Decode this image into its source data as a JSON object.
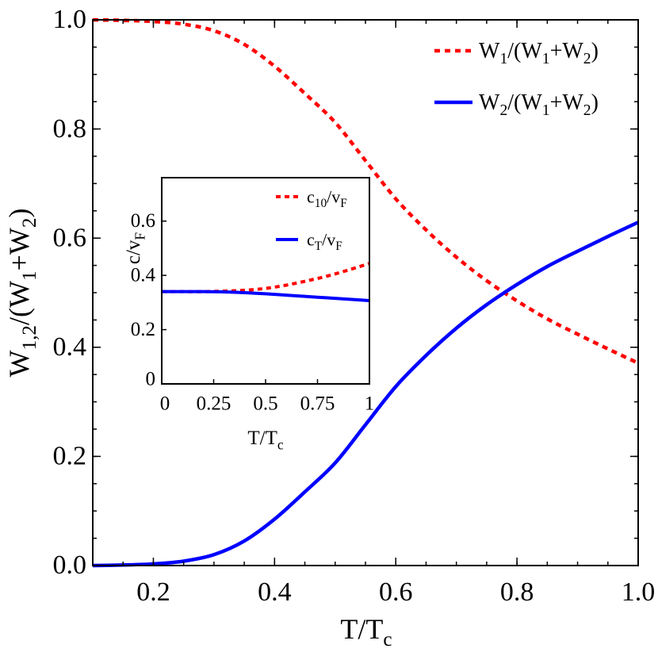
{
  "chart_data": [
    {
      "type": "line",
      "xlabel": [
        {
          "t": "T/T"
        },
        {
          "sub": "c"
        }
      ],
      "ylabel": [
        {
          "t": "W"
        },
        {
          "sub": "1,2"
        },
        {
          "t": "/(W"
        },
        {
          "sub": "1"
        },
        {
          "t": "+W"
        },
        {
          "sub": "2"
        },
        {
          "t": ")"
        }
      ],
      "xlim": [
        0.1,
        1.0
      ],
      "ylim": [
        0.0,
        1.0
      ],
      "xticks": [
        "0.2",
        "0.4",
        "0.6",
        "0.8",
        "1.0"
      ],
      "xtick_values": [
        0.2,
        0.4,
        0.6,
        0.8,
        1.0
      ],
      "yticks": [
        "0.0",
        "0.2",
        "0.4",
        "0.6",
        "0.8",
        "1.0"
      ],
      "ytick_values": [
        0,
        0.2,
        0.4,
        0.6,
        0.8,
        1.0
      ],
      "grid": false,
      "legend_position": "top-right",
      "x": [
        0.1,
        0.15,
        0.2,
        0.25,
        0.3,
        0.35,
        0.4,
        0.45,
        0.5,
        0.55,
        0.6,
        0.65,
        0.7,
        0.75,
        0.8,
        0.85,
        0.9,
        0.95,
        1.0
      ],
      "series": [
        {
          "name": [
            {
              "t": "W"
            },
            {
              "sub": "1"
            },
            {
              "t": "/(W"
            },
            {
              "sub": "1"
            },
            {
              "t": "+W"
            },
            {
              "sub": "2"
            },
            {
              "t": ")"
            }
          ],
          "style": "dotted",
          "color": "#ff0000",
          "values": [
            1.0,
            0.999,
            0.997,
            0.992,
            0.98,
            0.955,
            0.915,
            0.865,
            0.812,
            0.742,
            0.672,
            0.615,
            0.565,
            0.522,
            0.485,
            0.452,
            0.424,
            0.397,
            0.371
          ]
        },
        {
          "name": [
            {
              "t": "W"
            },
            {
              "sub": "2"
            },
            {
              "t": "/(W"
            },
            {
              "sub": "1"
            },
            {
              "t": "+W"
            },
            {
              "sub": "2"
            },
            {
              "t": ")"
            }
          ],
          "style": "solid",
          "color": "#0000ff",
          "values": [
            0.0,
            0.001,
            0.003,
            0.008,
            0.02,
            0.045,
            0.085,
            0.135,
            0.188,
            0.258,
            0.328,
            0.385,
            0.435,
            0.478,
            0.515,
            0.548,
            0.576,
            0.603,
            0.629
          ]
        }
      ]
    },
    {
      "type": "line",
      "xlabel": [
        {
          "t": "T/T"
        },
        {
          "sub": "c"
        }
      ],
      "ylabel": [
        {
          "t": "c/v"
        },
        {
          "sub": "F"
        }
      ],
      "xlim": [
        0,
        1
      ],
      "ylim": [
        0,
        0.76
      ],
      "xticks": [
        "0",
        "0.25",
        "0.5",
        "0.75",
        "1"
      ],
      "xtick_values": [
        0,
        0.25,
        0.5,
        0.75,
        1
      ],
      "yticks": [
        "0",
        "0.2",
        "0.4",
        "0.6"
      ],
      "ytick_values": [
        0,
        0.2,
        0.4,
        0.6
      ],
      "grid": false,
      "legend_position": "top-right",
      "x": [
        0,
        0.1,
        0.2,
        0.3,
        0.4,
        0.5,
        0.6,
        0.7,
        0.8,
        0.9,
        1.0
      ],
      "series": [
        {
          "name": [
            {
              "t": "c"
            },
            {
              "sub": "10"
            },
            {
              "t": "/v"
            },
            {
              "sub": "F"
            }
          ],
          "style": "dotted",
          "color": "#ff0000",
          "values": [
            0.34,
            0.34,
            0.34,
            0.342,
            0.345,
            0.352,
            0.364,
            0.38,
            0.398,
            0.42,
            0.444
          ]
        },
        {
          "name": [
            {
              "t": "c"
            },
            {
              "sub": "T"
            },
            {
              "t": "/v"
            },
            {
              "sub": "F"
            }
          ],
          "style": "solid",
          "color": "#0000ff",
          "values": [
            0.34,
            0.34,
            0.34,
            0.339,
            0.336,
            0.332,
            0.327,
            0.322,
            0.317,
            0.312,
            0.307
          ]
        }
      ]
    }
  ]
}
